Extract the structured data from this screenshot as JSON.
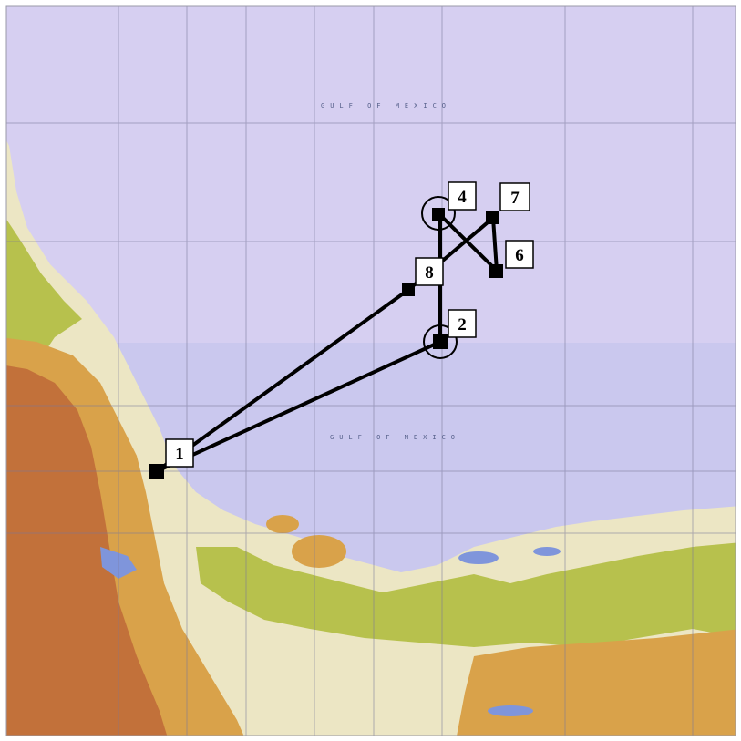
{
  "map": {
    "sea_labels": [
      "GULF OF MEXICO",
      "GULF OF MEXICO"
    ],
    "colors": {
      "sea_north": "#d6cff1",
      "sea_south": "#cac8ee",
      "lowland": "#ece6c4",
      "green": "#b7c14d",
      "highland": "#d9a24a",
      "mountain": "#c2713a",
      "water": "#7f95db",
      "route": "#000000"
    }
  },
  "route": {
    "order": [
      "1",
      "2",
      "4",
      "6",
      "7",
      "8",
      "1"
    ],
    "waypoints": [
      {
        "id": "1",
        "label": "1",
        "circled": false
      },
      {
        "id": "2",
        "label": "2",
        "circled": true
      },
      {
        "id": "4",
        "label": "4",
        "circled": true
      },
      {
        "id": "6",
        "label": "6",
        "circled": false
      },
      {
        "id": "7",
        "label": "7",
        "circled": false
      },
      {
        "id": "8",
        "label": "8",
        "circled": false
      }
    ]
  }
}
